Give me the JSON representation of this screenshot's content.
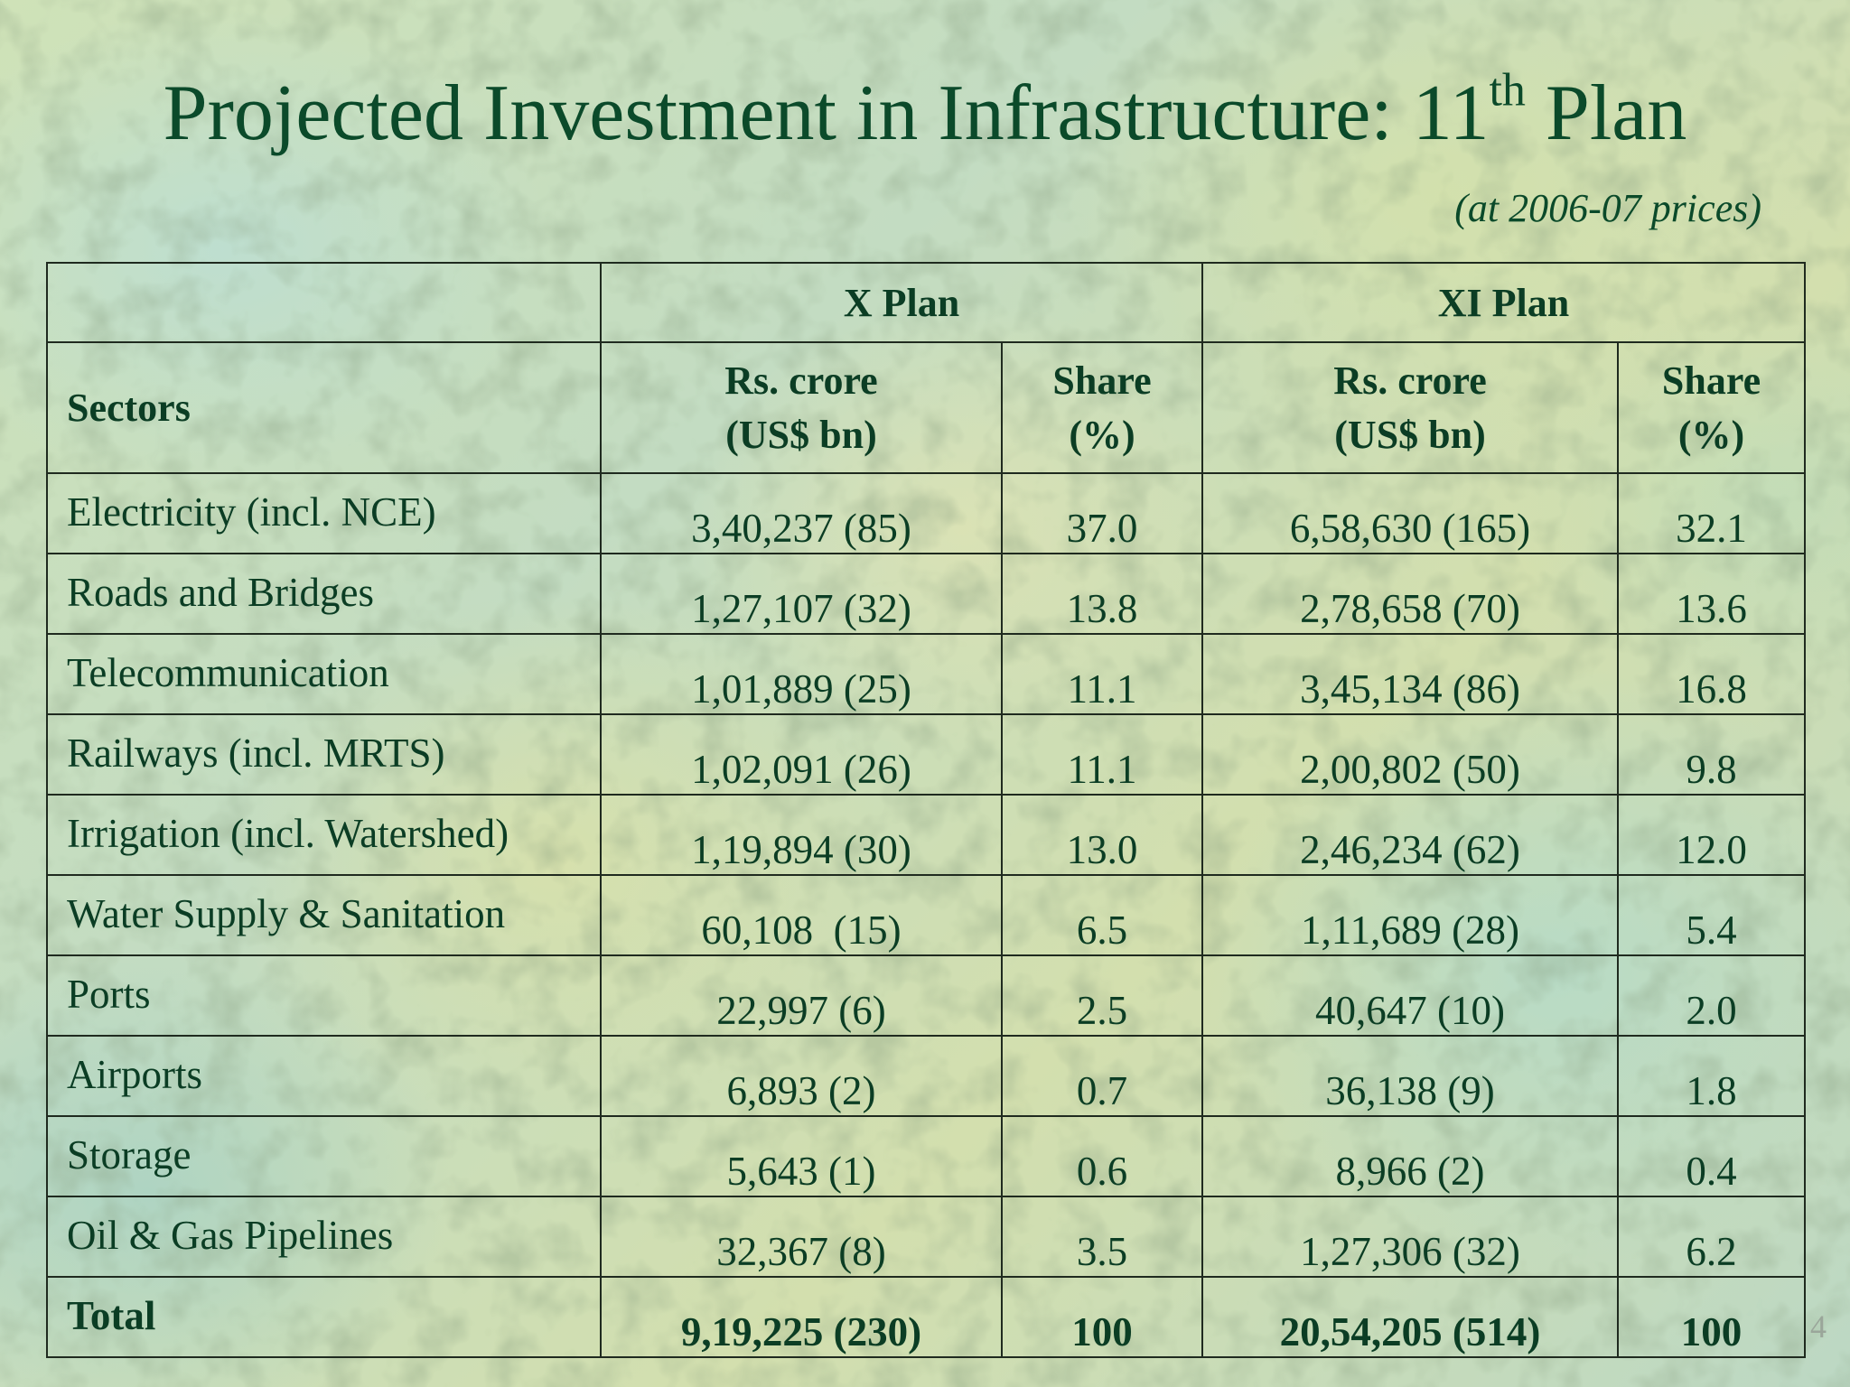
{
  "slide": {
    "title_main": "Projected Investment in Infrastructure: 11",
    "title_superscript": "th",
    "title_end": " Plan",
    "subtitle": "(at 2006-07 prices)",
    "page_number": "4"
  },
  "table": {
    "group_headers": [
      "X Plan",
      "XI Plan"
    ],
    "column_headers": {
      "sectors": "Sectors",
      "x_amount": [
        "Rs. crore",
        "(US$ bn)"
      ],
      "x_share": [
        "Share",
        "(%)"
      ],
      "xi_amount": [
        "Rs. crore",
        "(US$ bn)"
      ],
      "xi_share": [
        "Share",
        "(%)"
      ]
    },
    "rows": [
      {
        "sector": "Electricity (incl. NCE)",
        "x_amount": "3,40,237 (85)",
        "x_share": "37.0",
        "xi_amount": "6,58,630 (165)",
        "xi_share": "32.1"
      },
      {
        "sector": "Roads and Bridges",
        "x_amount": "1,27,107 (32)",
        "x_share": "13.8",
        "xi_amount": "2,78,658 (70)",
        "xi_share": "13.6"
      },
      {
        "sector": "Telecommunication",
        "x_amount": "1,01,889 (25)",
        "x_share": "11.1",
        "xi_amount": "3,45,134 (86)",
        "xi_share": "16.8"
      },
      {
        "sector": "Railways (incl. MRTS)",
        "x_amount": "1,02,091 (26)",
        "x_share": "11.1",
        "xi_amount": "2,00,802 (50)",
        "xi_share": "9.8"
      },
      {
        "sector": "Irrigation (incl. Watershed)",
        "x_amount": "1,19,894 (30)",
        "x_share": "13.0",
        "xi_amount": "2,46,234 (62)",
        "xi_share": "12.0"
      },
      {
        "sector": "Water Supply & Sanitation",
        "x_amount": "60,108  (15)",
        "x_share": "6.5",
        "xi_amount": "1,11,689 (28)",
        "xi_share": "5.4"
      },
      {
        "sector": "Ports",
        "x_amount": "22,997 (6)",
        "x_share": "2.5",
        "xi_amount": "40,647 (10)",
        "xi_share": "2.0"
      },
      {
        "sector": "Airports",
        "x_amount": "6,893 (2)",
        "x_share": "0.7",
        "xi_amount": "36,138 (9)",
        "xi_share": "1.8"
      },
      {
        "sector": "Storage",
        "x_amount": "5,643 (1)",
        "x_share": "0.6",
        "xi_amount": "8,966 (2)",
        "xi_share": "0.4"
      },
      {
        "sector": "Oil & Gas Pipelines",
        "x_amount": "32,367 (8)",
        "x_share": "3.5",
        "xi_amount": "1,27,306 (32)",
        "xi_share": "6.2"
      }
    ],
    "total": {
      "sector": "Total",
      "x_amount": "9,19,225 (230)",
      "x_share": "100",
      "xi_amount": "20,54,205 (514)",
      "xi_share": "100"
    }
  }
}
